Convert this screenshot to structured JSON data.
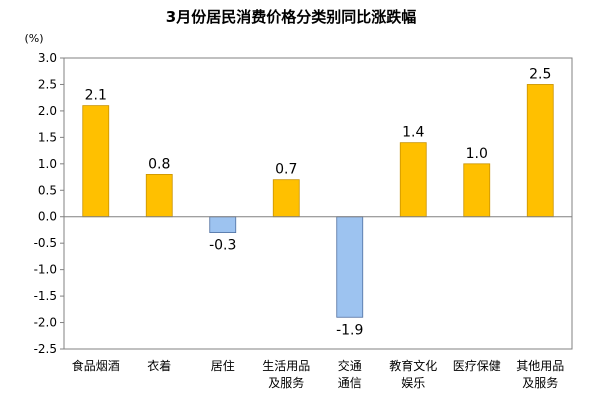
{
  "chart_data": {
    "type": "bar",
    "title": "3月份居民消费价格分类别同比涨跌幅",
    "unit_label": "(%)",
    "categories": [
      [
        "食品烟酒"
      ],
      [
        "衣着"
      ],
      [
        "居住"
      ],
      [
        "生活用品",
        "及服务"
      ],
      [
        "交通",
        "通信"
      ],
      [
        "教育文化",
        "娱乐"
      ],
      [
        "医疗保健"
      ],
      [
        "其他用品",
        "及服务"
      ]
    ],
    "values": [
      2.1,
      0.8,
      -0.3,
      0.7,
      -1.9,
      1.4,
      1.0,
      2.5
    ],
    "data_labels": [
      "2.1",
      "0.8",
      "-0.3",
      "0.7",
      "-1.9",
      "1.4",
      "1.0",
      "2.5"
    ],
    "ylim": [
      -2.5,
      3.0
    ],
    "yticks": [
      "3.0",
      "2.5",
      "2.0",
      "1.5",
      "1.0",
      "0.5",
      "0.0",
      "-0.5",
      "-1.0",
      "-1.5",
      "-2.0",
      "-2.5"
    ],
    "colors": {
      "positive": "#FFC000",
      "positive_border": "#C89200",
      "negative": "#9DC3F0",
      "negative_border": "#4F6FA0",
      "frame": "#808080"
    },
    "grid": false,
    "legend": "none"
  }
}
